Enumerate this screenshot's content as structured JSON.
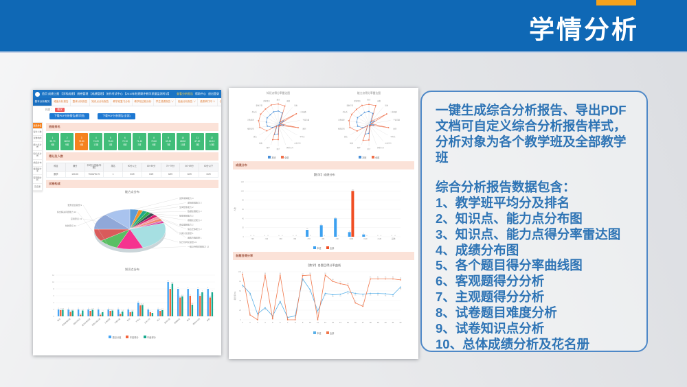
{
  "slide": {
    "title": "学情分析",
    "accent_color": "#f6a21c",
    "banner_color": "#0f68b5"
  },
  "right_panel": {
    "paragraph": "一键生成综合分析报告、导出PDF文档可自定义综合分析报告样式，分析对象为各个教学班及全部教学班",
    "subtitle": "综合分析报告数据包含：",
    "items": [
      "1、教学班平均分及排名",
      "2、知识点、能力点分布图",
      "3、知识点、能力点得分率雷达图",
      "4、成绩分布图",
      "5、各个题目得分率曲线图",
      "6、客观题得分分析",
      "7、主观题得分分析",
      "8、试卷题目难度分析",
      "9、试卷知识点分析",
      "10、总体成绩分析及花名册"
    ]
  },
  "app": {
    "navbar": {
      "items": [
        "首页",
        "成绩上报",
        "【学科成绩】",
        "阅卷管理",
        "【成绩管理】",
        "协作考试中心",
        "【2019年秋期高中教学质量监测考试】"
      ],
      "right_items": [
        "查看分析报告",
        "帮助中心",
        "退出登录"
      ]
    },
    "tabs": [
      "基本分析概况",
      "难度分析报告",
      "整体分析报告",
      "知识点分析报告",
      "教学班复习分析",
      "教学班过程分析",
      "学生成绩报告 ∨",
      "班级分析报告 ∨",
      "成绩单打印 ∨",
      "试卷讲评报告 ∨"
    ],
    "toolbar": {
      "crumbs": "科目：",
      "badge": "数学",
      "buttons": [
        "下载PDF分析报告(教学班)",
        "下载PDF分析报告(全部)"
      ]
    },
    "sidebar": [
      "班级排名",
      "得分人数",
      "试卷构成",
      "能力点分布",
      "知识点分布",
      "成绩分布",
      "各题得分率",
      "客观题分析",
      "花名册"
    ],
    "sections": [
      "班级排名",
      "得分及人数",
      "试卷构成"
    ],
    "tiles": [
      {
        "no": "1",
        "score": "95.70",
        "label": "5班"
      },
      {
        "no": "2",
        "score": "88.50",
        "label": "9班"
      },
      {
        "no": "3",
        "score": "75.80",
        "label": "4班"
      },
      {
        "no": "4",
        "score": "74.20",
        "label": "12班"
      },
      {
        "no": "5",
        "score": "73.60",
        "label": "1班"
      },
      {
        "no": "6",
        "score": "72.10",
        "label": "8班"
      },
      {
        "no": "7",
        "score": "71.40",
        "label": "2班"
      },
      {
        "no": "8",
        "score": "70.80",
        "label": "6班"
      },
      {
        "no": "9",
        "score": "69.30",
        "label": "7班"
      },
      {
        "no": "10",
        "score": "68.50",
        "label": "11班"
      },
      {
        "no": "11",
        "score": "67.20",
        "label": "3班"
      },
      {
        "no": "12",
        "score": "66.10",
        "label": "10班"
      }
    ],
    "table": {
      "headers": [
        "科目",
        "满分",
        "平均分(班级/年级)",
        "排名",
        "90分以上",
        "80~89分",
        "70~79分",
        "60~69分",
        "60分以下"
      ],
      "rows": [
        [
          "数学",
          "100.00",
          "75.80/76.70",
          "1",
          "0/29",
          "0/29",
          "0/29",
          "0/29",
          "0/29"
        ]
      ]
    }
  },
  "chart_data": {
    "ability_pie": {
      "type": "pie",
      "title": "能力点分布",
      "slices": [
        {
          "label": "运算求解能力",
          "value": 4,
          "color": "#5b9bd5"
        },
        {
          "label": "逻辑思维能力",
          "value": 2,
          "color": "#f39329"
        },
        {
          "label": "空间想象能力",
          "value": 2,
          "color": "#1fa88a"
        },
        {
          "label": "数据处理能力",
          "value": 2,
          "color": "#2fae52"
        },
        {
          "label": "抽象概括能力",
          "value": 2,
          "color": "#3f4a55"
        },
        {
          "label": "推理论证能力",
          "value": 2,
          "color": "#d81e6e"
        },
        {
          "label": "阅读理解能力",
          "value": 2,
          "color": "#ef9aa8"
        },
        {
          "label": "信息迁移能力",
          "value": 2,
          "color": "#f2876a"
        },
        {
          "label": "分类讨论思想",
          "value": 1,
          "color": "#c75fb8"
        },
        {
          "label": "函数方程思想",
          "value": 1,
          "color": "#e0218a"
        },
        {
          "label": "化归与转化思想",
          "value": 24,
          "color": "#a6dfe2"
        },
        {
          "label": "一般与特殊求解能力",
          "value": 12,
          "color": "#f5338f"
        },
        {
          "label": "数形结合思想",
          "value": 9,
          "color": "#5abf63"
        },
        {
          "label": "综合解决问题能力",
          "value": 10,
          "color": "#d95b5b"
        },
        {
          "label": "应用意识",
          "value": 13,
          "color": "#90a8d8"
        },
        {
          "label": "创新意识",
          "value": 12,
          "color": "#a9c3ee"
        }
      ]
    },
    "knowledge_bars": {
      "type": "bar",
      "title": "知识点分布",
      "categories": [
        "集合",
        "常用逻辑用语",
        "函数的概念",
        "基本初等函数",
        "导数及其应用",
        "三角函数",
        "平面向量",
        "数列",
        "不等式",
        "立体几何",
        "统计",
        "直线与圆",
        "圆锥曲线",
        "概率",
        "推理与证明",
        "复数"
      ],
      "series": [
        {
          "name": "题目分值",
          "color": "#45a5f5",
          "values": [
            2,
            2,
            2,
            2,
            2,
            2,
            2,
            2,
            4,
            2,
            2,
            10,
            8,
            8,
            8,
            8
          ]
        },
        {
          "name": "本班得分",
          "color": "#f4633a",
          "values": [
            1.8,
            1.3,
            0.5,
            1.6,
            0.5,
            1.6,
            0.7,
            1.2,
            3.2,
            1.2,
            1.6,
            8,
            5.5,
            6,
            6,
            5.5
          ]
        },
        {
          "name": "年级得分",
          "color": "#17a98e",
          "values": [
            1.9,
            1.7,
            1.7,
            1.9,
            1.2,
            1.7,
            1.4,
            1.4,
            3.3,
            1,
            1.8,
            9.5,
            5.8,
            3.4,
            7,
            7
          ]
        }
      ],
      "ylim": [
        0,
        12
      ],
      "legend_position": "bottom"
    },
    "radars": {
      "type": "radar",
      "axes": [
        "集合",
        "函数",
        "导数",
        "三角函数",
        "平面向量",
        "数列",
        "不等式",
        "立体几何",
        "解析几何",
        "统计",
        "概率",
        "复数",
        "算法",
        "推理证明",
        "计数原理",
        "坐标系",
        "参数方程",
        "逻辑用语"
      ],
      "legend": [
        "本班",
        "全部"
      ],
      "colors": [
        "#4a90d9",
        "#f0704a"
      ],
      "items": [
        {
          "title": "知识点得分率雷达图",
          "series": [
            [
              0.6,
              0.55,
              0.1,
              0.3,
              0.07,
              0.25,
              0.06,
              0.05,
              0.06,
              0.45,
              0.5,
              0.08,
              0.3,
              0.5,
              0.55,
              0.58,
              0.56,
              0.6
            ],
            [
              0.92,
              0.88,
              0.15,
              0.95,
              0.1,
              0.92,
              0.12,
              0.08,
              0.1,
              0.7,
              0.75,
              0.12,
              0.6,
              0.85,
              0.9,
              0.92,
              0.9,
              0.93
            ]
          ]
        },
        {
          "title": "能力点得分率雷达图",
          "series": [
            [
              0.58,
              0.52,
              0.12,
              0.28,
              0.08,
              0.22,
              0.07,
              0.05,
              0.07,
              0.42,
              0.48,
              0.09,
              0.32,
              0.52,
              0.56,
              0.6,
              0.54,
              0.58
            ],
            [
              0.9,
              0.9,
              0.18,
              0.93,
              0.12,
              0.9,
              0.1,
              0.09,
              0.12,
              0.72,
              0.78,
              0.1,
              0.62,
              0.88,
              0.92,
              0.9,
              0.88,
              0.91
            ]
          ]
        }
      ]
    },
    "score_dist": {
      "type": "bar",
      "section": "成绩分布",
      "title": "【数学】成绩分布",
      "ylabel": "人数",
      "categories": [
        "<30",
        "<40",
        "<50",
        "<60",
        "<70",
        "<80",
        "<90",
        "<100",
        "<110",
        "<120",
        "其他"
      ],
      "series": [
        {
          "name": "本班",
          "color": "#3da1f0",
          "values": [
            0,
            0,
            0,
            0,
            15,
            25,
            40,
            10,
            5,
            0,
            0
          ]
        },
        {
          "name": "全部",
          "color": "#f04e23",
          "values": [
            0,
            0,
            0,
            0,
            0,
            0,
            0,
            100,
            0,
            0,
            0
          ]
        }
      ],
      "ylim": [
        0,
        120
      ],
      "legend_position": "bottom"
    },
    "score_rate_line": {
      "type": "line",
      "section": "各题目得分率",
      "title": "【数学】各题目得分率曲线",
      "ylabel": "得分率(%)",
      "categories": [
        "1",
        "2",
        "3",
        "4",
        "5",
        "6",
        "7",
        "8",
        "9",
        "10",
        "11",
        "12",
        "13",
        "14",
        "15",
        "16",
        "17",
        "18",
        "19",
        "20",
        "21",
        "22"
      ],
      "series": [
        {
          "name": "本班",
          "color": "#58b0e8",
          "values": [
            72,
            55,
            12,
            25,
            8,
            38,
            5,
            8,
            85,
            62,
            18,
            55,
            52,
            53,
            58,
            55,
            53,
            55,
            55,
            54,
            52,
            68
          ]
        },
        {
          "name": "全部",
          "color": "#f0764a",
          "values": [
            95,
            10,
            0,
            93,
            2,
            93,
            0,
            0,
            92,
            93,
            0,
            93,
            80,
            75,
            72,
            35,
            28,
            85,
            85,
            85,
            85,
            83
          ]
        }
      ],
      "ylim": [
        0,
        100
      ],
      "legend_position": "bottom"
    }
  }
}
